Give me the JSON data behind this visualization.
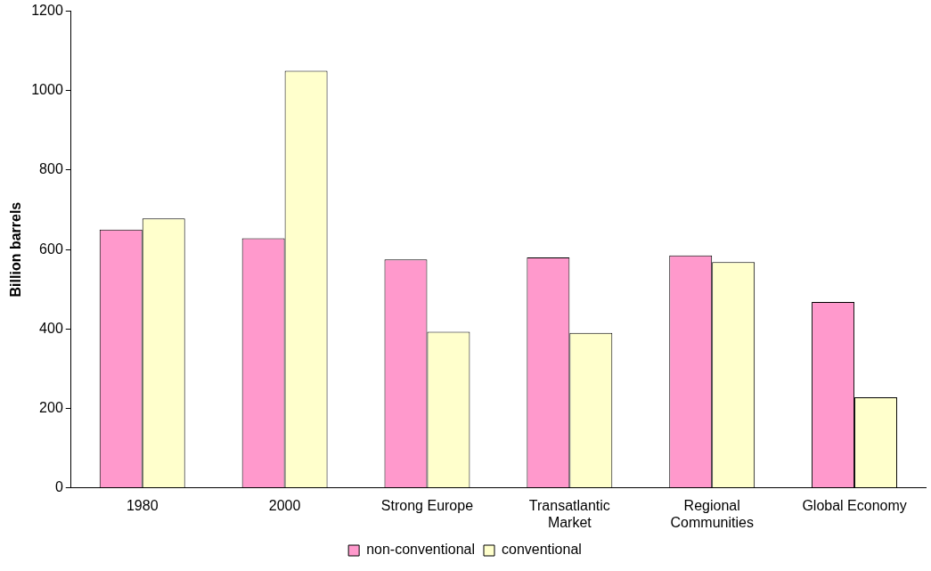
{
  "chart_data": {
    "type": "bar",
    "ylabel": "Billion barrels",
    "categories": [
      "1980",
      "2000",
      "Strong Europe",
      "Transatlantic Market",
      "Regional Communities",
      "Global Economy"
    ],
    "series": [
      {
        "name": "non-conventional",
        "color": "#ff99cc",
        "values": [
          650,
          628,
          575,
          580,
          585,
          468
        ]
      },
      {
        "name": "conventional",
        "color": "#ffffcc",
        "values": [
          678,
          1050,
          393,
          390,
          568,
          228
        ]
      }
    ],
    "ylim": [
      0,
      1200
    ],
    "yticks": [
      0,
      200,
      400,
      600,
      800,
      1000,
      1200
    ],
    "grid": false,
    "legend": "bottom"
  }
}
